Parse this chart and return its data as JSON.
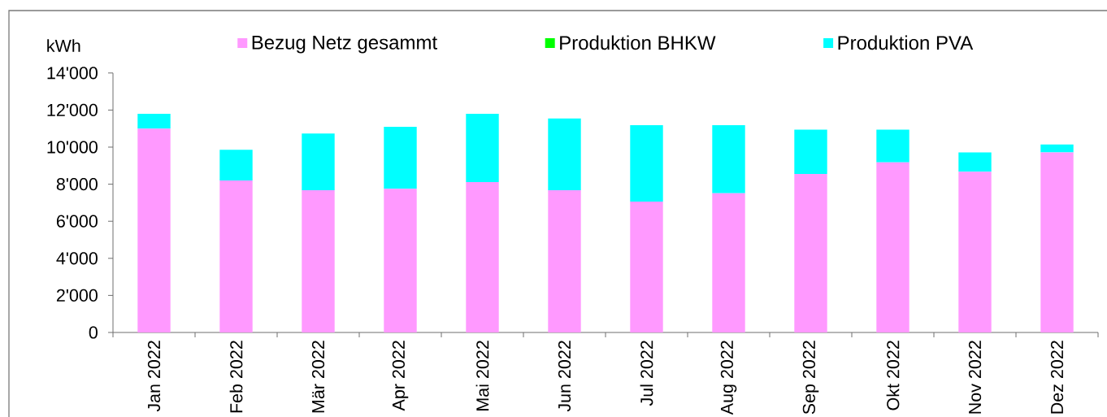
{
  "chart_data": {
    "type": "bar",
    "ylabel": "kWh",
    "categories": [
      "Jan 2022",
      "Feb 2022",
      "Mär 2022",
      "Apr 2022",
      "Mai 2022",
      "Jun 2022",
      "Jul 2022",
      "Aug 2022",
      "Sep 2022",
      "Okt 2022",
      "Nov 2022",
      "Dez 2022"
    ],
    "series": [
      {
        "name": "Bezug Netz gesammt",
        "color": "#ff99ff",
        "values": [
          11000,
          8200,
          7670,
          7750,
          8110,
          7680,
          7060,
          7510,
          8550,
          9180,
          8670,
          9720
        ]
      },
      {
        "name": "Produktion BHKW",
        "color": "#00ff00",
        "values": [
          0,
          0,
          0,
          0,
          0,
          0,
          0,
          0,
          0,
          0,
          0,
          0
        ]
      },
      {
        "name": "Produktion PVA",
        "color": "#00ffff",
        "values": [
          800,
          1660,
          3070,
          3350,
          3690,
          3870,
          4120,
          3670,
          2390,
          1760,
          1050,
          420
        ]
      }
    ],
    "stacked": true,
    "ylim": [
      0,
      14000
    ],
    "yticks": [
      0,
      {
        "value": 2000,
        "label": "2'000"
      },
      {
        "value": 4000,
        "label": "4'000"
      },
      {
        "value": 6000,
        "label": "6'000"
      },
      {
        "value": 8000,
        "label": "8'000"
      },
      {
        "value": 10000,
        "label": "10'000"
      },
      {
        "value": 12000,
        "label": "12'000"
      },
      {
        "value": 14000,
        "label": "14'000"
      }
    ],
    "legend": "top"
  }
}
